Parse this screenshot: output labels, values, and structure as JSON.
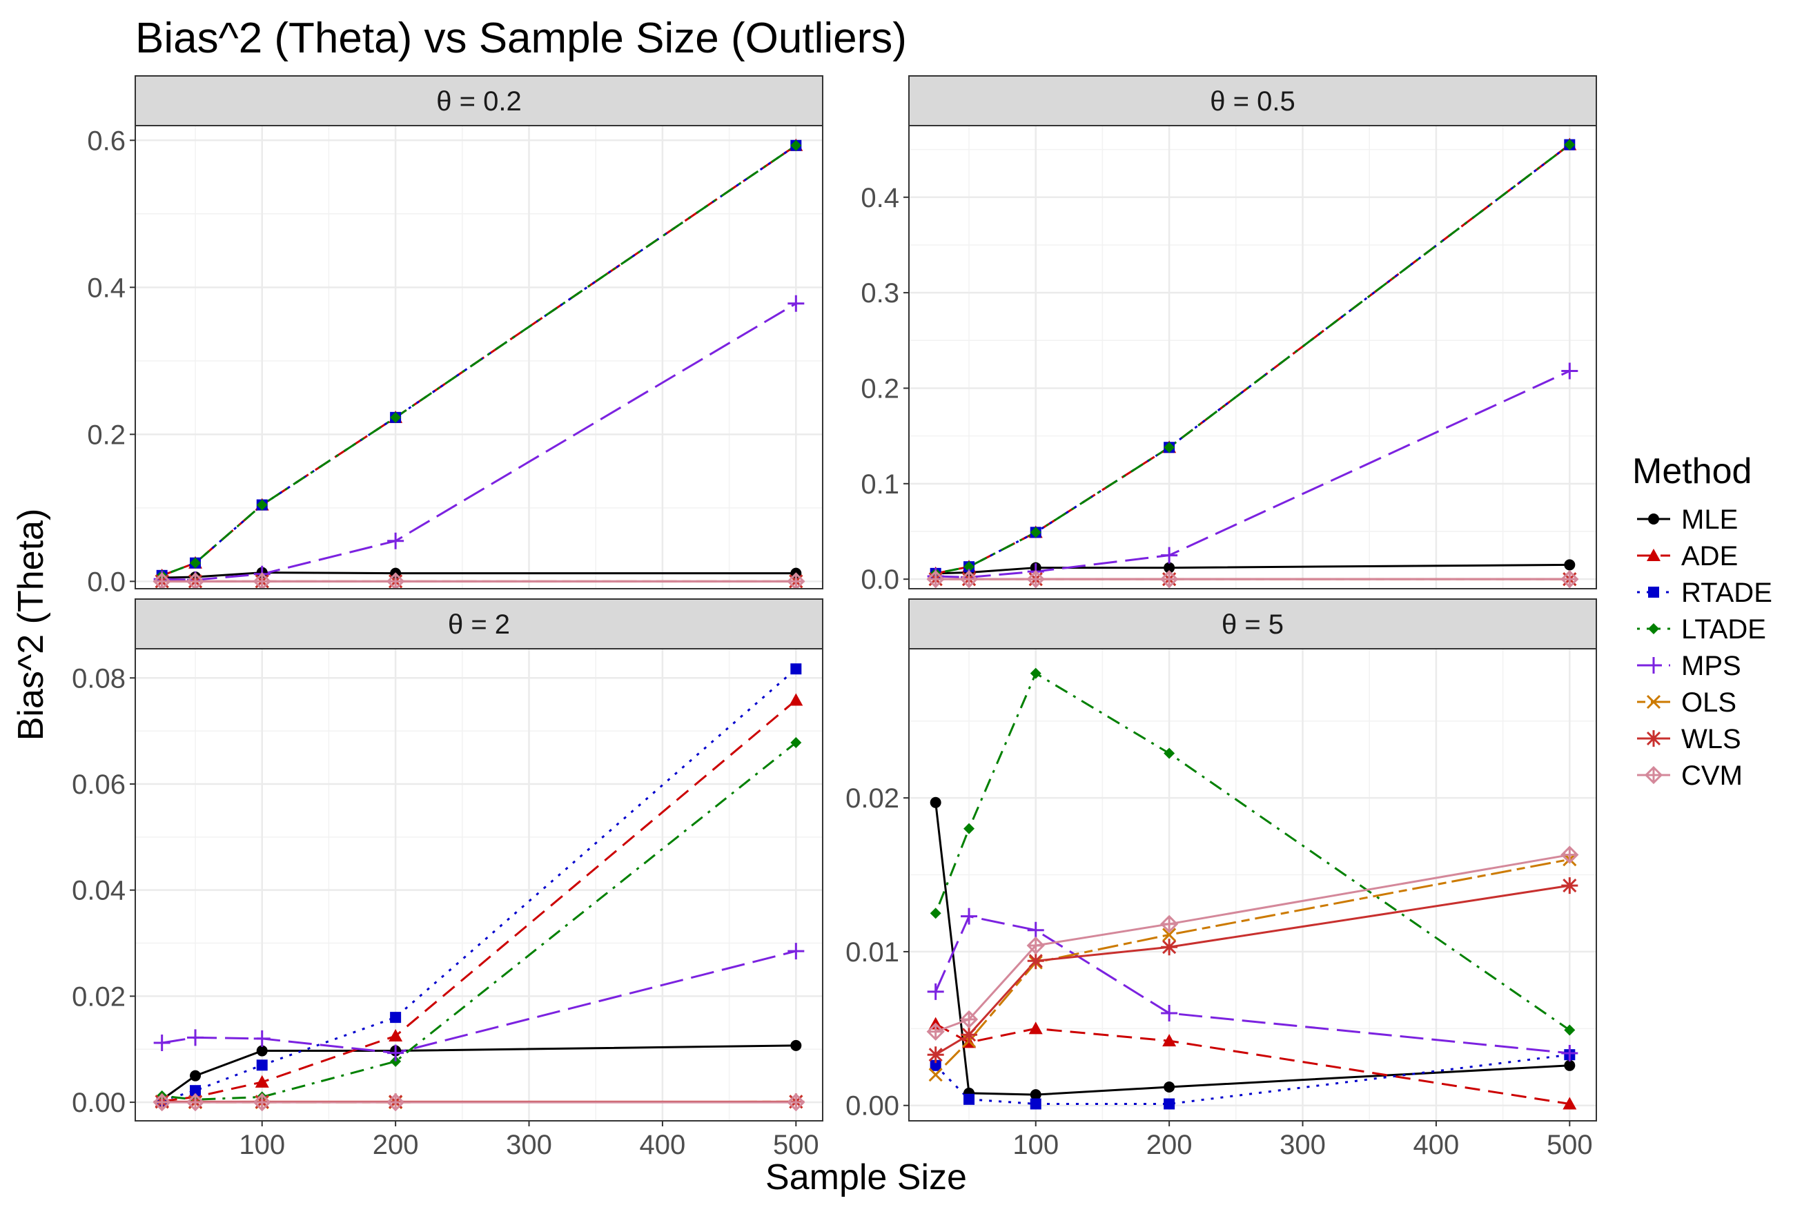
{
  "chart_data": {
    "type": "line",
    "title": "Bias^2 (Theta) vs Sample Size (Outliers)",
    "xlabel": "Sample Size",
    "ylabel": "Bias^2 (Theta)",
    "x": [
      25,
      50,
      100,
      200,
      500
    ],
    "xlim": [
      5,
      520
    ],
    "xticks": [
      100,
      200,
      300,
      400,
      500
    ],
    "xtick_labels": [
      "100",
      "200",
      "300",
      "400",
      "500"
    ],
    "legend": {
      "title": "Method",
      "position": "right",
      "items": [
        {
          "name": "MLE",
          "color": "#000000",
          "shape": "circle",
          "dash": "solid"
        },
        {
          "name": "ADE",
          "color": "#cc0000",
          "shape": "triangle",
          "dash": "dashed"
        },
        {
          "name": "RTADE",
          "color": "#0000cc",
          "shape": "square",
          "dash": "dotted"
        },
        {
          "name": "LTADE",
          "color": "#008000",
          "shape": "diamond",
          "dash": "dotdash"
        },
        {
          "name": "MPS",
          "color": "#7b22e0",
          "shape": "plus",
          "dash": "longdash"
        },
        {
          "name": "OLS",
          "color": "#cc7a00",
          "shape": "cross",
          "dash": "twodash"
        },
        {
          "name": "WLS",
          "color": "#c8302e",
          "shape": "asterisk",
          "dash": "solid"
        },
        {
          "name": "CVM",
          "color": "#d4889a",
          "shape": "diamond-open",
          "dash": "solid"
        }
      ]
    },
    "panels": [
      {
        "strip": "θ = 0.2",
        "ylim": [
          -0.01,
          0.62
        ],
        "yticks": [
          0.0,
          0.2,
          0.4,
          0.6
        ],
        "ytick_labels": [
          "0.0",
          "0.2",
          "0.4",
          "0.6"
        ],
        "series": [
          {
            "name": "MLE",
            "values": [
              0.005,
              0.006,
              0.012,
              0.011,
              0.011
            ]
          },
          {
            "name": "ADE",
            "values": [
              0.008,
              0.025,
              0.104,
              0.223,
              0.593
            ]
          },
          {
            "name": "RTADE",
            "values": [
              0.008,
              0.025,
              0.104,
              0.223,
              0.593
            ]
          },
          {
            "name": "LTADE",
            "values": [
              0.008,
              0.025,
              0.104,
              0.223,
              0.593
            ]
          },
          {
            "name": "MPS",
            "values": [
              0.003,
              0.002,
              0.01,
              0.055,
              0.378
            ]
          },
          {
            "name": "OLS",
            "values": [
              0.0,
              0.0,
              0.0,
              0.0,
              0.0
            ]
          },
          {
            "name": "WLS",
            "values": [
              0.0,
              0.0,
              0.0,
              0.0,
              0.0
            ]
          },
          {
            "name": "CVM",
            "values": [
              0.0,
              0.0,
              0.0,
              0.0,
              0.0
            ]
          }
        ]
      },
      {
        "strip": "θ = 0.5",
        "ylim": [
          -0.01,
          0.475
        ],
        "yticks": [
          0.0,
          0.1,
          0.2,
          0.3,
          0.4
        ],
        "ytick_labels": [
          "0.0",
          "0.1",
          "0.2",
          "0.3",
          "0.4"
        ],
        "series": [
          {
            "name": "MLE",
            "values": [
              0.006,
              0.007,
              0.012,
              0.012,
              0.015
            ]
          },
          {
            "name": "ADE",
            "values": [
              0.006,
              0.013,
              0.049,
              0.138,
              0.455
            ]
          },
          {
            "name": "RTADE",
            "values": [
              0.006,
              0.013,
              0.049,
              0.138,
              0.455
            ]
          },
          {
            "name": "LTADE",
            "values": [
              0.006,
              0.013,
              0.049,
              0.138,
              0.455
            ]
          },
          {
            "name": "MPS",
            "values": [
              0.003,
              0.002,
              0.008,
              0.025,
              0.218
            ]
          },
          {
            "name": "OLS",
            "values": [
              0.0,
              0.0,
              0.0,
              0.0,
              0.0
            ]
          },
          {
            "name": "WLS",
            "values": [
              0.0,
              0.0,
              0.0,
              0.0,
              0.0
            ]
          },
          {
            "name": "CVM",
            "values": [
              0.0,
              0.0,
              0.0,
              0.0,
              0.0
            ]
          }
        ]
      },
      {
        "strip": "θ = 2",
        "ylim": [
          -0.0035,
          0.0855
        ],
        "yticks": [
          0.0,
          0.02,
          0.04,
          0.06,
          0.08
        ],
        "ytick_labels": [
          "0.00",
          "0.02",
          "0.04",
          "0.06",
          "0.08"
        ],
        "series": [
          {
            "name": "MLE",
            "values": [
              0.0005,
              0.005,
              0.0097,
              0.0097,
              0.0107
            ]
          },
          {
            "name": "ADE",
            "values": [
              0.0002,
              0.001,
              0.0038,
              0.0125,
              0.0758
            ]
          },
          {
            "name": "RTADE",
            "values": [
              0.0003,
              0.0022,
              0.007,
              0.016,
              0.0817
            ]
          },
          {
            "name": "LTADE",
            "values": [
              0.0012,
              0.0005,
              0.001,
              0.0077,
              0.0678
            ]
          },
          {
            "name": "MPS",
            "values": [
              0.0112,
              0.0122,
              0.012,
              0.0093,
              0.0285
            ]
          },
          {
            "name": "OLS",
            "values": [
              0.0001,
              0.0,
              0.0,
              0.0,
              0.0001
            ]
          },
          {
            "name": "WLS",
            "values": [
              0.0001,
              0.0001,
              0.0001,
              0.0001,
              0.0001
            ]
          },
          {
            "name": "CVM",
            "values": [
              0.0,
              0.0,
              0.0,
              0.0,
              0.0
            ]
          }
        ]
      },
      {
        "strip": "θ = 5",
        "ylim": [
          -0.001,
          0.0297
        ],
        "yticks": [
          0.0,
          0.01,
          0.02
        ],
        "ytick_labels": [
          "0.00",
          "0.01",
          "0.02"
        ],
        "series": [
          {
            "name": "MLE",
            "values": [
              0.0197,
              0.0008,
              0.0007,
              0.0012,
              0.0026
            ]
          },
          {
            "name": "ADE",
            "values": [
              0.0053,
              0.0041,
              0.005,
              0.0042,
              0.0001
            ]
          },
          {
            "name": "RTADE",
            "values": [
              0.0026,
              0.0004,
              0.0001,
              0.0001,
              0.0033
            ]
          },
          {
            "name": "LTADE",
            "values": [
              0.0125,
              0.018,
              0.0281,
              0.0229,
              0.0049
            ]
          },
          {
            "name": "MPS",
            "values": [
              0.0074,
              0.0123,
              0.0114,
              0.006,
              0.0034
            ]
          },
          {
            "name": "OLS",
            "values": [
              0.002,
              0.0042,
              0.0093,
              0.0111,
              0.016
            ]
          },
          {
            "name": "WLS",
            "values": [
              0.0033,
              0.0046,
              0.0094,
              0.0103,
              0.0143
            ]
          },
          {
            "name": "CVM",
            "values": [
              0.0048,
              0.0056,
              0.0104,
              0.0118,
              0.0163
            ]
          }
        ]
      }
    ]
  }
}
